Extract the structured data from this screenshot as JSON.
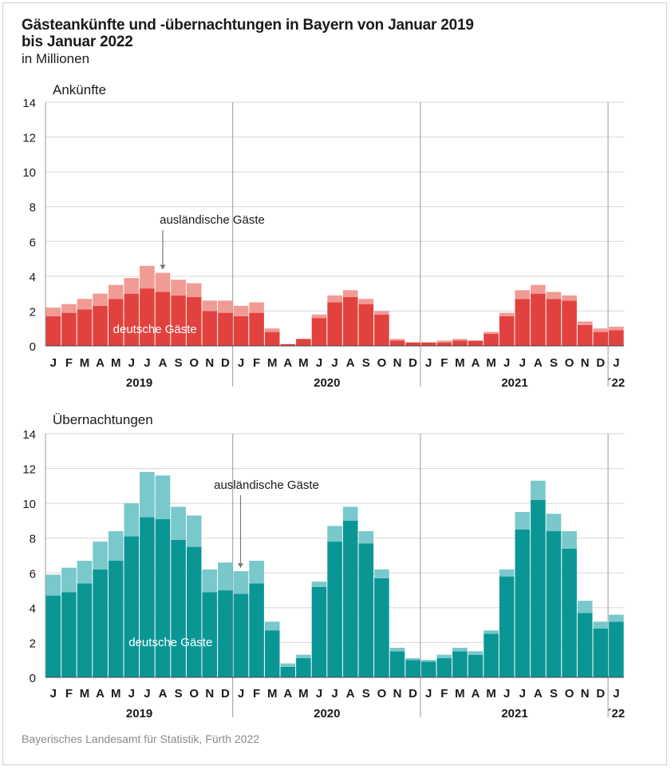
{
  "title_lines": [
    "Gästeankünfte und -übernachtungen in Bayern von Januar 2019",
    "bis Januar 2022"
  ],
  "subtitle": "in Millionen",
  "source": "Bayerisches Landesamt für Statistik, Fürth 2022",
  "chart_data": [
    {
      "type": "bar",
      "stacked": true,
      "title": "Ankünfte",
      "ylim": [
        0,
        14
      ],
      "yticks": [
        0,
        2,
        4,
        6,
        8,
        10,
        12,
        14
      ],
      "month_labels": [
        "J",
        "F",
        "M",
        "A",
        "M",
        "J",
        "J",
        "A",
        "S",
        "O",
        "N",
        "D",
        "J",
        "F",
        "M",
        "A",
        "M",
        "J",
        "J",
        "A",
        "S",
        "O",
        "N",
        "D",
        "J",
        "F",
        "M",
        "A",
        "M",
        "J",
        "J",
        "A",
        "S",
        "O",
        "N",
        "D",
        "J"
      ],
      "years": [
        "2019",
        "2020",
        "2021",
        "´22"
      ],
      "annotation": "ausländische Gäste",
      "inner_label": "deutsche Gäste",
      "colors": {
        "inland": "#e2423f",
        "foreign": "#f19b95"
      },
      "series": [
        {
          "name": "deutsche Gäste",
          "values": [
            1.7,
            1.9,
            2.1,
            2.3,
            2.7,
            3.0,
            3.3,
            3.1,
            2.9,
            2.8,
            2.0,
            1.9,
            1.7,
            1.9,
            0.8,
            0.1,
            0.4,
            1.6,
            2.5,
            2.8,
            2.4,
            1.8,
            0.3,
            0.2,
            0.2,
            0.2,
            0.3,
            0.3,
            0.7,
            1.7,
            2.7,
            3.0,
            2.7,
            2.6,
            1.2,
            0.8,
            0.9
          ]
        },
        {
          "name": "ausländische Gäste",
          "values": [
            0.5,
            0.5,
            0.6,
            0.7,
            0.8,
            0.9,
            1.3,
            1.1,
            0.9,
            0.8,
            0.6,
            0.7,
            0.6,
            0.6,
            0.2,
            0.0,
            0.0,
            0.2,
            0.4,
            0.4,
            0.3,
            0.2,
            0.1,
            0.0,
            0.0,
            0.1,
            0.1,
            0.0,
            0.1,
            0.2,
            0.5,
            0.5,
            0.4,
            0.3,
            0.2,
            0.2,
            0.2
          ]
        }
      ]
    },
    {
      "type": "bar",
      "stacked": true,
      "title": "Übernachtungen",
      "ylim": [
        0,
        14
      ],
      "yticks": [
        0,
        2,
        4,
        6,
        8,
        10,
        12,
        14
      ],
      "month_labels": [
        "J",
        "F",
        "M",
        "A",
        "M",
        "J",
        "J",
        "A",
        "S",
        "O",
        "N",
        "D",
        "J",
        "F",
        "M",
        "A",
        "M",
        "J",
        "J",
        "A",
        "S",
        "O",
        "N",
        "D",
        "J",
        "F",
        "M",
        "A",
        "M",
        "J",
        "J",
        "A",
        "S",
        "O",
        "N",
        "D",
        "J"
      ],
      "years": [
        "2019",
        "2020",
        "2021",
        "´22"
      ],
      "annotation": "ausländische Gäste",
      "inner_label": "deutsche Gäste",
      "colors": {
        "inland": "#0b9696",
        "foreign": "#79c8cb"
      },
      "series": [
        {
          "name": "deutsche Gäste",
          "values": [
            4.7,
            4.9,
            5.4,
            6.2,
            6.7,
            8.1,
            9.2,
            9.1,
            7.9,
            7.5,
            4.9,
            5.0,
            4.8,
            5.4,
            2.7,
            0.6,
            1.1,
            5.2,
            7.8,
            9.0,
            7.7,
            5.7,
            1.5,
            1.0,
            0.9,
            1.1,
            1.5,
            1.3,
            2.5,
            5.8,
            8.5,
            10.2,
            8.4,
            7.4,
            3.7,
            2.8,
            3.2
          ]
        },
        {
          "name": "ausländische Gäste",
          "values": [
            1.2,
            1.4,
            1.3,
            1.6,
            1.7,
            1.9,
            2.6,
            2.5,
            1.9,
            1.8,
            1.3,
            1.6,
            1.3,
            1.3,
            0.5,
            0.2,
            0.2,
            0.3,
            0.9,
            0.8,
            0.7,
            0.5,
            0.2,
            0.1,
            0.1,
            0.2,
            0.2,
            0.2,
            0.2,
            0.4,
            1.0,
            1.1,
            1.0,
            1.0,
            0.7,
            0.4,
            0.4
          ]
        }
      ]
    }
  ]
}
